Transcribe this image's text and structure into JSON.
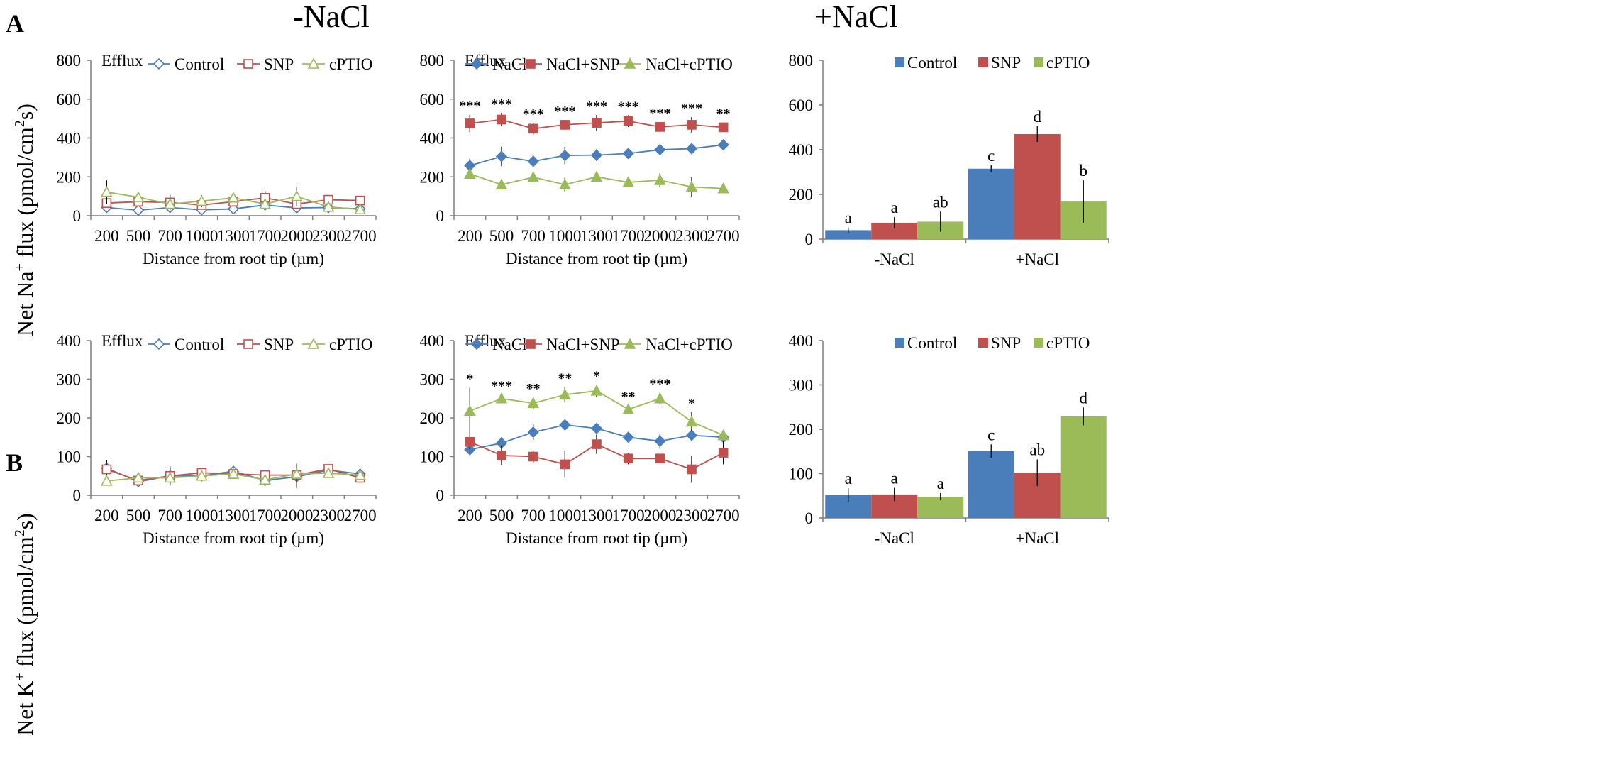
{
  "figure": {
    "panel_labels": [
      "A",
      "B"
    ],
    "column_titles": [
      "-NaCl",
      "+NaCl"
    ],
    "ylabel_na": {
      "pre": "Net Na",
      "sup": "+",
      "mid": " flux (pmol/cm",
      "sup2": "2",
      "post": "s)"
    },
    "ylabel_k": {
      "pre": "Net K",
      "sup": "+",
      "mid": " flux (pmol/cm",
      "sup2": "2",
      "post": "s)"
    }
  },
  "colors": {
    "blue": "#4a7ebb",
    "red": "#c0504d",
    "green": "#9bbb59"
  },
  "chart_data": [
    {
      "id": "na_minus",
      "type": "line",
      "annotation": "Efflux",
      "xlabel": "Distance from root tip (µm)",
      "ylabel": "",
      "categories": [
        "200",
        "500",
        "700",
        "1000",
        "1300",
        "1700",
        "2000",
        "2300",
        "2700"
      ],
      "ylim": [
        0,
        800
      ],
      "yticks": [
        0,
        200,
        400,
        600,
        800
      ],
      "series": [
        {
          "name": "Control",
          "marker": "diamond-open",
          "color": "#4a7ebb",
          "values": [
            42,
            28,
            42,
            30,
            35,
            55,
            40,
            42,
            35
          ],
          "errors": [
            15,
            8,
            12,
            10,
            10,
            12,
            10,
            10,
            8
          ]
        },
        {
          "name": "SNP",
          "marker": "square-open",
          "color": "#c0504d",
          "values": [
            65,
            72,
            68,
            55,
            72,
            92,
            60,
            82,
            78
          ],
          "errors": [
            15,
            20,
            40,
            15,
            20,
            35,
            25,
            15,
            15
          ]
        },
        {
          "name": "cPTIO",
          "marker": "triangle-open",
          "color": "#9bbb59",
          "values": [
            122,
            95,
            60,
            75,
            92,
            60,
            100,
            45,
            32
          ],
          "errors": [
            60,
            15,
            20,
            30,
            15,
            15,
            50,
            10,
            10
          ]
        }
      ],
      "significance": []
    },
    {
      "id": "na_plus",
      "type": "line",
      "annotation": "Efflux",
      "xlabel": "Distance from root tip (µm)",
      "ylabel": "",
      "categories": [
        "200",
        "500",
        "700",
        "1000",
        "1300",
        "1700",
        "2000",
        "2300",
        "2700"
      ],
      "ylim": [
        0,
        800
      ],
      "yticks": [
        0,
        200,
        400,
        600,
        800
      ],
      "series": [
        {
          "name": "NaCl",
          "marker": "diamond",
          "color": "#4a7ebb",
          "values": [
            258,
            305,
            280,
            310,
            312,
            320,
            340,
            345,
            365
          ],
          "errors": [
            35,
            50,
            30,
            45,
            30,
            25,
            10,
            15,
            25
          ]
        },
        {
          "name": "NaCl+SNP",
          "marker": "square",
          "color": "#c0504d",
          "values": [
            475,
            495,
            448,
            468,
            478,
            487,
            457,
            468,
            455
          ],
          "errors": [
            45,
            35,
            30,
            25,
            40,
            30,
            25,
            40,
            25
          ]
        },
        {
          "name": "NaCl+cPTIO",
          "marker": "triangle",
          "color": "#9bbb59",
          "values": [
            215,
            160,
            198,
            160,
            200,
            172,
            183,
            148,
            140
          ],
          "errors": [
            20,
            10,
            20,
            35,
            20,
            10,
            35,
            50,
            20
          ]
        }
      ],
      "significance": [
        "***",
        "***",
        "***",
        "***",
        "***",
        "***",
        "***",
        "***",
        "**"
      ]
    },
    {
      "id": "na_bar",
      "type": "bar",
      "categories": [
        "-NaCl",
        "+NaCl"
      ],
      "ylim": [
        0,
        800
      ],
      "yticks": [
        0,
        200,
        400,
        600,
        800
      ],
      "series": [
        {
          "name": "Control",
          "color": "#4a7ebb",
          "values": [
            40,
            315
          ],
          "errors": [
            12,
            15
          ],
          "letters": [
            "a",
            "c"
          ]
        },
        {
          "name": "SNP",
          "color": "#c0504d",
          "values": [
            73,
            470
          ],
          "errors": [
            25,
            35
          ],
          "letters": [
            "a",
            "d"
          ]
        },
        {
          "name": "cPTIO",
          "color": "#9bbb59",
          "values": [
            78,
            168
          ],
          "errors": [
            45,
            95
          ],
          "letters": [
            "ab",
            "b"
          ]
        }
      ]
    },
    {
      "id": "k_minus",
      "type": "line",
      "annotation": "Efflux",
      "xlabel": "Distance from root tip (µm)",
      "ylabel": "",
      "categories": [
        "200",
        "500",
        "700",
        "1000",
        "1300",
        "1700",
        "2000",
        "2300",
        "2700"
      ],
      "ylim": [
        0,
        400
      ],
      "yticks": [
        0,
        100,
        200,
        300,
        400
      ],
      "series": [
        {
          "name": "Control",
          "marker": "diamond-open",
          "color": "#4a7ebb",
          "values": [
            70,
            35,
            50,
            50,
            62,
            38,
            48,
            65,
            55
          ],
          "errors": [
            20,
            10,
            20,
            10,
            10,
            10,
            30,
            10,
            10
          ]
        },
        {
          "name": "SNP",
          "marker": "square-open",
          "color": "#c0504d",
          "values": [
            67,
            38,
            50,
            58,
            55,
            52,
            52,
            68,
            45
          ],
          "errors": [
            15,
            10,
            25,
            10,
            10,
            10,
            30,
            10,
            10
          ]
        },
        {
          "name": "cPTIO",
          "marker": "triangle-open",
          "color": "#9bbb59",
          "values": [
            37,
            45,
            45,
            50,
            55,
            40,
            55,
            57,
            52
          ],
          "errors": [
            10,
            10,
            10,
            10,
            10,
            10,
            15,
            10,
            10
          ]
        }
      ],
      "significance": []
    },
    {
      "id": "k_plus",
      "type": "line",
      "annotation": "Efflux",
      "xlabel": "Distance from root tip (µm)",
      "ylabel": "",
      "categories": [
        "200",
        "500",
        "700",
        "1000",
        "1300",
        "1700",
        "2000",
        "2300",
        "2700"
      ],
      "ylim": [
        0,
        400
      ],
      "yticks": [
        0,
        100,
        200,
        300,
        400
      ],
      "series": [
        {
          "name": "NaCl",
          "marker": "diamond",
          "color": "#4a7ebb",
          "values": [
            118,
            135,
            163,
            182,
            173,
            150,
            140,
            155,
            150
          ],
          "errors": [
            10,
            15,
            20,
            10,
            10,
            12,
            20,
            15,
            12
          ]
        },
        {
          "name": "NaCl+SNP",
          "marker": "square",
          "color": "#c0504d",
          "values": [
            138,
            103,
            100,
            80,
            132,
            95,
            95,
            67,
            110
          ],
          "errors": [
            20,
            25,
            15,
            35,
            25,
            15,
            10,
            35,
            30
          ]
        },
        {
          "name": "NaCl+cPTIO",
          "marker": "triangle",
          "color": "#9bbb59",
          "values": [
            218,
            250,
            238,
            260,
            270,
            222,
            250,
            190,
            155
          ],
          "errors": [
            60,
            10,
            15,
            20,
            15,
            10,
            15,
            25,
            10
          ]
        }
      ],
      "significance": [
        "*",
        "***",
        "**",
        "**",
        "*",
        "**",
        "***",
        "*",
        ""
      ]
    },
    {
      "id": "k_bar",
      "type": "bar",
      "categories": [
        "-NaCl",
        "+NaCl"
      ],
      "ylim": [
        0,
        400
      ],
      "yticks": [
        0,
        100,
        200,
        300,
        400
      ],
      "series": [
        {
          "name": "Control",
          "color": "#4a7ebb",
          "values": [
            52,
            151
          ],
          "errors": [
            15,
            15
          ],
          "letters": [
            "a",
            "c"
          ]
        },
        {
          "name": "SNP",
          "color": "#c0504d",
          "values": [
            53,
            102
          ],
          "errors": [
            15,
            30
          ],
          "letters": [
            "a",
            "ab"
          ]
        },
        {
          "name": "cPTIO",
          "color": "#9bbb59",
          "values": [
            48,
            229
          ],
          "errors": [
            8,
            20
          ],
          "letters": [
            "a",
            "d"
          ]
        }
      ]
    }
  ]
}
